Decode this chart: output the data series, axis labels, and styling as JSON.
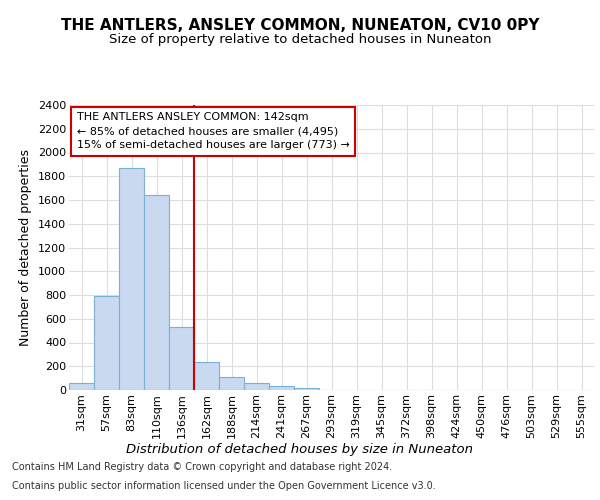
{
  "title": "THE ANTLERS, ANSLEY COMMON, NUNEATON, CV10 0PY",
  "subtitle": "Size of property relative to detached houses in Nuneaton",
  "xlabel": "Distribution of detached houses by size in Nuneaton",
  "ylabel": "Number of detached properties",
  "footer_line1": "Contains HM Land Registry data © Crown copyright and database right 2024.",
  "footer_line2": "Contains public sector information licensed under the Open Government Licence v3.0.",
  "bar_labels": [
    "31sqm",
    "57sqm",
    "83sqm",
    "110sqm",
    "136sqm",
    "162sqm",
    "188sqm",
    "214sqm",
    "241sqm",
    "267sqm",
    "293sqm",
    "319sqm",
    "345sqm",
    "372sqm",
    "398sqm",
    "424sqm",
    "450sqm",
    "476sqm",
    "503sqm",
    "529sqm",
    "555sqm"
  ],
  "bar_values": [
    60,
    790,
    1870,
    1640,
    530,
    240,
    110,
    60,
    35,
    20,
    0,
    0,
    0,
    0,
    0,
    0,
    0,
    0,
    0,
    0,
    0
  ],
  "bar_color": "#c8d9f0",
  "bar_edge_color": "#7bafd4",
  "red_line_color": "#cc0000",
  "annotation_title": "THE ANTLERS ANSLEY COMMON: 142sqm",
  "annotation_line1": "← 85% of detached houses are smaller (4,495)",
  "annotation_line2": "15% of semi-detached houses are larger (773) →",
  "ylim": [
    0,
    2400
  ],
  "yticks": [
    0,
    200,
    400,
    600,
    800,
    1000,
    1200,
    1400,
    1600,
    1800,
    2000,
    2200,
    2400
  ],
  "background_color": "#ffffff",
  "plot_bg_color": "#ffffff",
  "grid_color": "#dddddd",
  "title_fontsize": 11,
  "subtitle_fontsize": 9.5,
  "ylabel_fontsize": 9,
  "xlabel_fontsize": 9.5,
  "tick_fontsize": 8,
  "footer_fontsize": 7
}
